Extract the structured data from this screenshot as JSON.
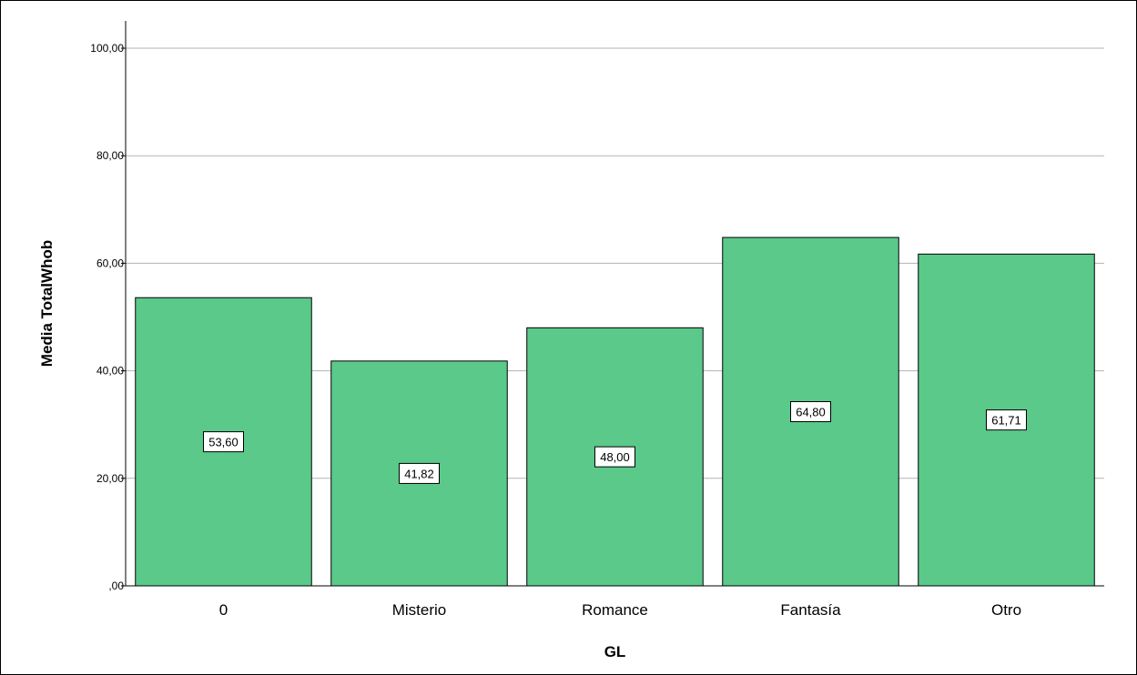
{
  "chart_data": {
    "type": "bar",
    "categories": [
      "0",
      "Misterio",
      "Romance",
      "Fantasía",
      "Otro"
    ],
    "values": [
      53.6,
      41.82,
      48.0,
      64.8,
      61.71
    ],
    "data_labels": [
      "53,60",
      "41,82",
      "48,00",
      "64,80",
      "61,71"
    ],
    "xlabel": "GL",
    "ylabel": "Media TotalWhob",
    "ylim": [
      0,
      100
    ],
    "yticks": [
      0,
      20,
      40,
      60,
      80,
      100
    ],
    "ytick_labels": [
      ",00",
      "20,00",
      "40,00",
      "60,00",
      "80,00",
      "100,00"
    ],
    "grid": "horizontal",
    "legend": "none",
    "bar_color": "#5ac98a",
    "bar_border_color": "#000000",
    "grid_color": "#b3b3b3"
  }
}
